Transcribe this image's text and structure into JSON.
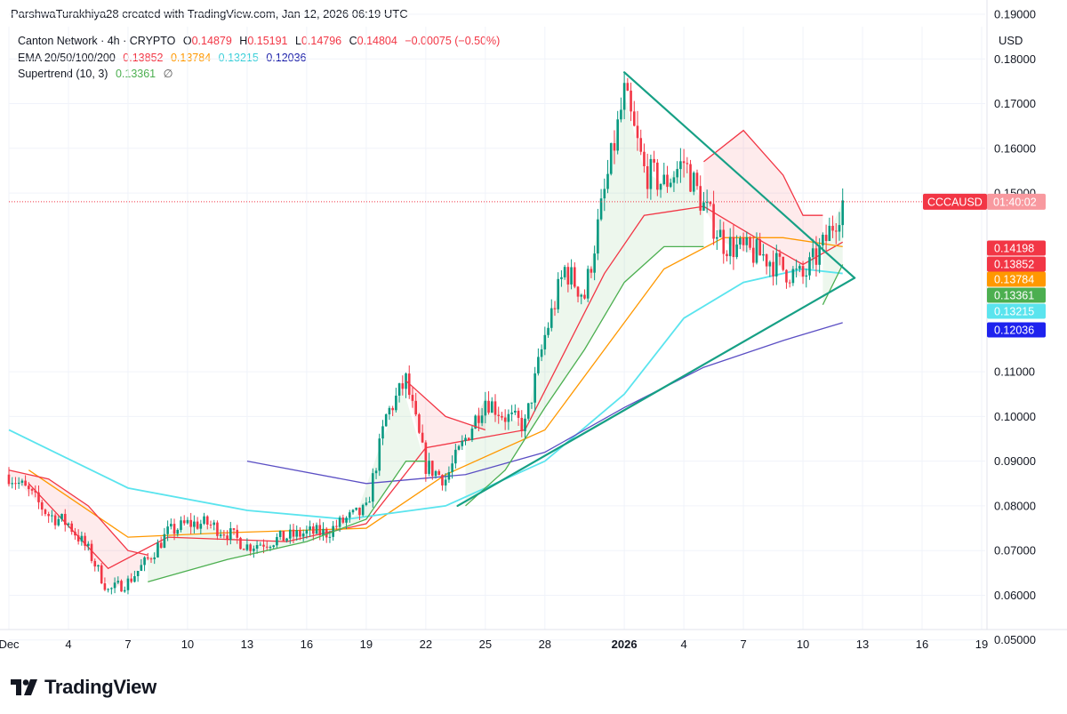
{
  "header": {
    "caption": "ParshwaTurakhiya28 created with TradingView.com, Jan 12, 2026 06:19 UTC"
  },
  "legend": {
    "symbol": "Canton Network · 4h · CRYPTO",
    "o_label": "O",
    "o_value": "0.14879",
    "h_label": "H",
    "h_value": "0.15191",
    "l_label": "L",
    "l_value": "0.14796",
    "c_label": "C",
    "c_value": "0.14804",
    "change": "−0.00075 (−0.50%)",
    "ema_label": "EMA 20/50/100/200",
    "ema20": "0.13852",
    "ema50": "0.13784",
    "ema100": "0.13215",
    "ema200": "0.12036",
    "st_label": "Supertrend (10, 3)",
    "st_value": "0.13361",
    "st_icon": "∅"
  },
  "currency": "USD",
  "brand": {
    "name": "TradingView"
  },
  "colors": {
    "up": "#089981",
    "down": "#f23645",
    "ema20": "#f23645",
    "ema50": "#ff9800",
    "ema100": "#5ae4ee",
    "ema200": "#5b4fc4",
    "st_up": "#4caf50",
    "st_down": "#f23645",
    "triangle": "#16a085"
  },
  "chart_data": {
    "type": "candlestick",
    "symbol": "CCCAUSD",
    "interval": "4h",
    "ylim": [
      0.04,
      0.19
    ],
    "y_ticks": [
      "0.19000",
      "0.18000",
      "0.17000",
      "0.16000",
      "0.15000",
      "0.11000",
      "0.10000",
      "0.09000",
      "0.08000",
      "0.07000",
      "0.06000",
      "0.05000"
    ],
    "y_tick_values": [
      0.19,
      0.18,
      0.17,
      0.16,
      0.15,
      0.11,
      0.1,
      0.09,
      0.08,
      0.07,
      0.06,
      0.05
    ],
    "x_domain": [
      "2025-12-02",
      "2026-01-19"
    ],
    "x_ticks": [
      {
        "date": "2025-12-01",
        "label": "Dec",
        "bold": false
      },
      {
        "date": "2025-12-04",
        "label": "4",
        "bold": false
      },
      {
        "date": "2025-12-07",
        "label": "7",
        "bold": false
      },
      {
        "date": "2025-12-10",
        "label": "10",
        "bold": false
      },
      {
        "date": "2025-12-13",
        "label": "13",
        "bold": false
      },
      {
        "date": "2025-12-16",
        "label": "16",
        "bold": false
      },
      {
        "date": "2025-12-19",
        "label": "19",
        "bold": false
      },
      {
        "date": "2025-12-22",
        "label": "22",
        "bold": false
      },
      {
        "date": "2025-12-25",
        "label": "25",
        "bold": false
      },
      {
        "date": "2025-12-28",
        "label": "28",
        "bold": false
      },
      {
        "date": "2026-01-01",
        "label": "2026",
        "bold": true
      },
      {
        "date": "2026-01-04",
        "label": "4",
        "bold": false
      },
      {
        "date": "2026-01-07",
        "label": "7",
        "bold": false
      },
      {
        "date": "2026-01-10",
        "label": "10",
        "bold": false
      },
      {
        "date": "2026-01-13",
        "label": "13",
        "bold": false
      },
      {
        "date": "2026-01-16",
        "label": "16",
        "bold": false
      },
      {
        "date": "2026-01-19",
        "label": "19",
        "bold": false
      }
    ],
    "close_path": [
      [
        "2025-12-01",
        0.087
      ],
      [
        "2025-12-02",
        0.083
      ],
      [
        "2025-12-03",
        0.078
      ],
      [
        "2025-12-04",
        0.076
      ],
      [
        "2025-12-05",
        0.07
      ],
      [
        "2025-12-06",
        0.061
      ],
      [
        "2025-12-07",
        0.063
      ],
      [
        "2025-12-08",
        0.068
      ],
      [
        "2025-12-09",
        0.074
      ],
      [
        "2025-12-10",
        0.076
      ],
      [
        "2025-12-11",
        0.076
      ],
      [
        "2025-12-12",
        0.074
      ],
      [
        "2025-12-13",
        0.071
      ],
      [
        "2025-12-14",
        0.072
      ],
      [
        "2025-12-15",
        0.073
      ],
      [
        "2025-12-16",
        0.074
      ],
      [
        "2025-12-17",
        0.074
      ],
      [
        "2025-12-18",
        0.077
      ],
      [
        "2025-12-19",
        0.079
      ],
      [
        "2025-12-20",
        0.1
      ],
      [
        "2025-12-21",
        0.108
      ],
      [
        "2025-12-22",
        0.089
      ],
      [
        "2025-12-23",
        0.086
      ],
      [
        "2025-12-24",
        0.095
      ],
      [
        "2025-12-25",
        0.104
      ],
      [
        "2025-12-26",
        0.1
      ],
      [
        "2025-12-27",
        0.098
      ],
      [
        "2025-12-28",
        0.118
      ],
      [
        "2025-12-29",
        0.133
      ],
      [
        "2025-12-30",
        0.127
      ],
      [
        "2025-12-31",
        0.15
      ],
      [
        "2026-01-01",
        0.172
      ],
      [
        "2026-01-02",
        0.155
      ],
      [
        "2026-01-03",
        0.152
      ],
      [
        "2026-01-04",
        0.157
      ],
      [
        "2026-01-05",
        0.147
      ],
      [
        "2026-01-06",
        0.139
      ],
      [
        "2026-01-07",
        0.137
      ],
      [
        "2026-01-08",
        0.136
      ],
      [
        "2026-01-09",
        0.133
      ],
      [
        "2026-01-10",
        0.131
      ],
      [
        "2026-01-11",
        0.138
      ],
      [
        "2026-01-12",
        0.148
      ]
    ],
    "series": [
      {
        "name": "EMA 20",
        "value": 0.13852,
        "points": [
          [
            "2025-12-02",
            0.085
          ],
          [
            "2025-12-06",
            0.066
          ],
          [
            "2025-12-09",
            0.073
          ],
          [
            "2025-12-15",
            0.072
          ],
          [
            "2025-12-19",
            0.076
          ],
          [
            "2025-12-22",
            0.093
          ],
          [
            "2025-12-27",
            0.097
          ],
          [
            "2025-12-31",
            0.132
          ],
          [
            "2026-01-02",
            0.145
          ],
          [
            "2026-01-05",
            0.147
          ],
          [
            "2026-01-08",
            0.139
          ],
          [
            "2026-01-10",
            0.134
          ],
          [
            "2026-01-12",
            0.139
          ]
        ]
      },
      {
        "name": "EMA 50",
        "value": 0.13784,
        "points": [
          [
            "2025-12-02",
            0.088
          ],
          [
            "2025-12-07",
            0.073
          ],
          [
            "2025-12-12",
            0.074
          ],
          [
            "2025-12-19",
            0.075
          ],
          [
            "2025-12-23",
            0.087
          ],
          [
            "2025-12-28",
            0.097
          ],
          [
            "2025-12-31",
            0.115
          ],
          [
            "2026-01-03",
            0.133
          ],
          [
            "2026-01-06",
            0.14
          ],
          [
            "2026-01-09",
            0.14
          ],
          [
            "2026-01-12",
            0.138
          ]
        ]
      },
      {
        "name": "EMA 100",
        "value": 0.13215,
        "points": [
          [
            "2025-12-01",
            0.097
          ],
          [
            "2025-12-07",
            0.084
          ],
          [
            "2025-12-13",
            0.079
          ],
          [
            "2025-12-18",
            0.077
          ],
          [
            "2025-12-23",
            0.08
          ],
          [
            "2025-12-28",
            0.09
          ],
          [
            "2026-01-01",
            0.105
          ],
          [
            "2026-01-04",
            0.122
          ],
          [
            "2026-01-07",
            0.13
          ],
          [
            "2026-01-10",
            0.133
          ],
          [
            "2026-01-12",
            0.132
          ]
        ]
      },
      {
        "name": "EMA 200",
        "value": 0.12036,
        "points": [
          [
            "2025-12-13",
            0.09
          ],
          [
            "2025-12-19",
            0.085
          ],
          [
            "2025-12-24",
            0.087
          ],
          [
            "2025-12-28",
            0.092
          ],
          [
            "2026-01-01",
            0.102
          ],
          [
            "2026-01-05",
            0.111
          ],
          [
            "2026-01-09",
            0.117
          ],
          [
            "2026-01-12",
            0.121
          ]
        ]
      },
      {
        "name": "Supertrend (10, 3)",
        "value": 0.13361,
        "segments": [
          {
            "trend": "down",
            "points": [
              [
                "2025-12-01",
                0.088
              ],
              [
                "2025-12-03",
                0.086
              ],
              [
                "2025-12-05",
                0.08
              ],
              [
                "2025-12-07",
                0.07
              ],
              [
                "2025-12-08",
                0.069
              ]
            ]
          },
          {
            "trend": "up",
            "points": [
              [
                "2025-12-08",
                0.063
              ],
              [
                "2025-12-12",
                0.068
              ],
              [
                "2025-12-16",
                0.072
              ],
              [
                "2025-12-19",
                0.077
              ],
              [
                "2025-12-21",
                0.09
              ],
              [
                "2025-12-22",
                0.09
              ]
            ]
          },
          {
            "trend": "down",
            "points": [
              [
                "2025-12-21",
                0.108
              ],
              [
                "2025-12-23",
                0.1
              ],
              [
                "2025-12-25",
                0.097
              ]
            ]
          },
          {
            "trend": "up",
            "points": [
              [
                "2025-12-24",
                0.08
              ],
              [
                "2025-12-26",
                0.088
              ],
              [
                "2025-12-28",
                0.102
              ],
              [
                "2025-12-30",
                0.115
              ],
              [
                "2026-01-01",
                0.13
              ],
              [
                "2026-01-03",
                0.138
              ],
              [
                "2026-01-05",
                0.138
              ]
            ]
          },
          {
            "trend": "down",
            "points": [
              [
                "2026-01-05",
                0.157
              ],
              [
                "2026-01-07",
                0.164
              ],
              [
                "2026-01-09",
                0.154
              ],
              [
                "2026-01-10",
                0.145
              ],
              [
                "2026-01-11",
                0.145
              ]
            ]
          },
          {
            "trend": "up",
            "points": [
              [
                "2026-01-11",
                0.125
              ],
              [
                "2026-01-12",
                0.134
              ]
            ]
          }
        ]
      }
    ],
    "trendlines": [
      {
        "points": [
          [
            "2026-01-01",
            0.177
          ],
          [
            "2026-01-12.6",
            0.131
          ]
        ]
      },
      {
        "points": [
          [
            "2025-12-23.6",
            0.08
          ],
          [
            "2026-01-12.6",
            0.131
          ]
        ]
      }
    ],
    "last_price": {
      "label": "CCCAUSD",
      "countdown": "01:40:02",
      "value": 0.14804
    },
    "price_pills": [
      {
        "value": 0.14198,
        "label": "0.14198",
        "color": "#f23645"
      },
      {
        "value": 0.13852,
        "label": "0.13852",
        "color": "#f23645"
      },
      {
        "value": 0.13784,
        "label": "0.13784",
        "color": "#ff9800"
      },
      {
        "value": 0.13361,
        "label": "0.13361",
        "color": "#4caf50"
      },
      {
        "value": 0.13215,
        "label": "0.13215",
        "color": "#5ae4ee"
      },
      {
        "value": 0.12036,
        "label": "0.12036",
        "color": "#1e22ee"
      }
    ]
  }
}
